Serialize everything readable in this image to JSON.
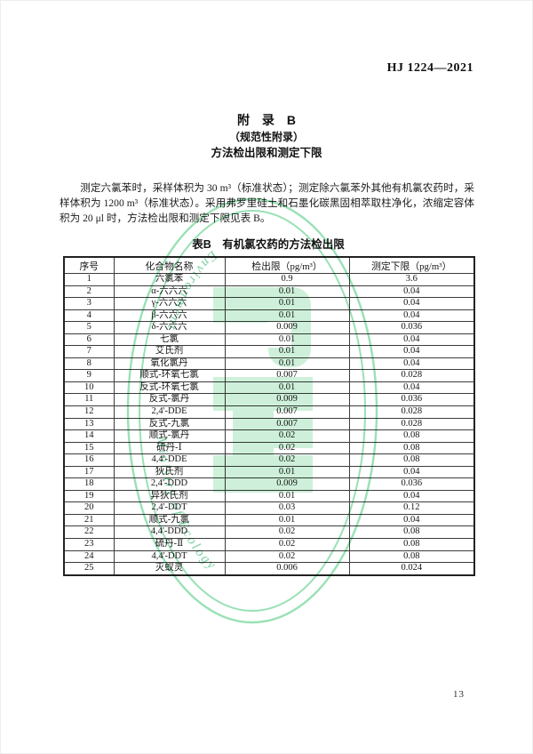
{
  "page": {
    "header": "HJ 1224—2021",
    "page_number": "13"
  },
  "appendix": {
    "line1": "附　录　B",
    "line2": "（规范性附录）",
    "line3": "方法检出限和测定下限"
  },
  "paragraph": {
    "text": "测定六氯苯时，采样体积为 30 m³（标准状态）；测定除六氯苯外其他有机氯农药时，采样体积为 1200 m³（标准状态）。采用弗罗里硅土和石墨化碳黑固相萃取柱净化，浓缩定容体积为 20 μl 时，方法检出限和测定下限见表 B。"
  },
  "table": {
    "caption": "表B　有机氯农药的方法检出限",
    "columns": [
      "序号",
      "化合物名称",
      "检出限（pg/m³）",
      "测定下限（pg/m³）"
    ],
    "rows": [
      [
        "1",
        "六氯苯",
        "0.9",
        "3.6"
      ],
      [
        "2",
        "α-六六六",
        "0.01",
        "0.04"
      ],
      [
        "3",
        "γ-六六六",
        "0.01",
        "0.04"
      ],
      [
        "4",
        "β-六六六",
        "0.01",
        "0.04"
      ],
      [
        "5",
        "δ-六六六",
        "0.009",
        "0.036"
      ],
      [
        "6",
        "七氯",
        "0.01",
        "0.04"
      ],
      [
        "7",
        "艾氏剂",
        "0.01",
        "0.04"
      ],
      [
        "8",
        "氧化氯丹",
        "0.01",
        "0.04"
      ],
      [
        "9",
        "顺式-环氧七氯",
        "0.007",
        "0.028"
      ],
      [
        "10",
        "反式-环氧七氯",
        "0.01",
        "0.04"
      ],
      [
        "11",
        "反式-氯丹",
        "0.009",
        "0.036"
      ],
      [
        "12",
        "2,4'-DDE",
        "0.007",
        "0.028"
      ],
      [
        "13",
        "反式-九氯",
        "0.007",
        "0.028"
      ],
      [
        "14",
        "顺式-氯丹",
        "0.02",
        "0.08"
      ],
      [
        "15",
        "硫丹-Ⅰ",
        "0.02",
        "0.08"
      ],
      [
        "16",
        "4,4'-DDE",
        "0.02",
        "0.08"
      ],
      [
        "17",
        "狄氏剂",
        "0.01",
        "0.04"
      ],
      [
        "18",
        "2,4'-DDD",
        "0.009",
        "0.036"
      ],
      [
        "19",
        "异狄氏剂",
        "0.01",
        "0.04"
      ],
      [
        "20",
        "2,4'-DDT",
        "0.03",
        "0.12"
      ],
      [
        "21",
        "顺式-九氯",
        "0.01",
        "0.04"
      ],
      [
        "22",
        "4,4'-DDD",
        "0.02",
        "0.08"
      ],
      [
        "23",
        "硫丹-Ⅱ",
        "0.02",
        "0.08"
      ],
      [
        "24",
        "4,4'-DDT",
        "0.02",
        "0.08"
      ],
      [
        "25",
        "灭蚁灵",
        "0.006",
        "0.024"
      ]
    ]
  },
  "watermark": {
    "arc_text_top": "Environment",
    "arc_text_bottom": "Ministry of Ecology",
    "ring_color": "#7fd9a2",
    "glyph_color": "#c9efd6",
    "notch_color": "#ffffff",
    "text_color": "#55c487"
  }
}
